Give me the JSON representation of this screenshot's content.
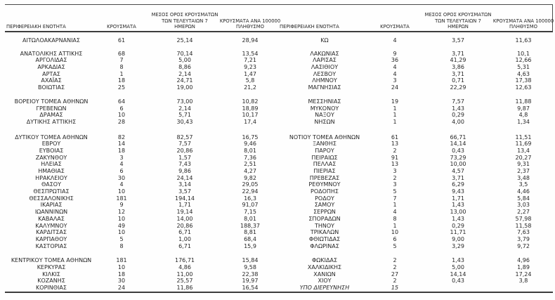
{
  "header": {
    "col_region": "ΠΕΡΙΦΕΡΕΙΑΚΗ ΕΝΟΤΗΤΑ",
    "col_cases": "ΚΡΟΥΣΜΑΤΑ",
    "col_avg7_line1": "ΜΕΣΟΣ ΟΡΟΣ ΚΡΟΥΣΜΑΤΩΝ",
    "col_avg7_line2": "ΤΩΝ ΤΕΛΕΥΤΑΙΩΝ 7",
    "col_avg7_line3": "ΗΜΕΡΩΝ",
    "col_per100k_line1": "ΚΡΟΥΣΜΑΤΑ ΑΝΑ 100000",
    "col_per100k_line2": "ΠΛΗΘΥΣΜΟ"
  },
  "tables": [
    {
      "side": "left",
      "rows": [
        {
          "region": "ΑΙΤΩΛΟΑΚΑΡΝΑΝΙΑΣ",
          "cases": "61",
          "avg7": "25,14",
          "per100k": "28,94"
        },
        {
          "spacer": true
        },
        {
          "region": "ΑΝΑΤΟΛΙΚΗΣ ΑΤΤΙΚΗΣ",
          "cases": "68",
          "avg7": "70,14",
          "per100k": "13,54"
        },
        {
          "region": "ΑΡΓΟΛΙΔΑΣ",
          "cases": "7",
          "avg7": "5,00",
          "per100k": "7,21"
        },
        {
          "region": "ΑΡΚΑΔΙΑΣ",
          "cases": "8",
          "avg7": "8,86",
          "per100k": "9,23"
        },
        {
          "region": "ΑΡΤΑΣ",
          "cases": "1",
          "avg7": "2,14",
          "per100k": "1,47"
        },
        {
          "region": "ΑΧΑΪΑΣ",
          "cases": "18",
          "avg7": "24,71",
          "per100k": "5,8"
        },
        {
          "region": "ΒΟΙΩΤΙΑΣ",
          "cases": "25",
          "avg7": "19,00",
          "per100k": "21,2"
        },
        {
          "spacer": true
        },
        {
          "region": "ΒΟΡΕΙΟΥ ΤΟΜΕΑ ΑΘΗΝΩΝ",
          "cases": "64",
          "avg7": "73,00",
          "per100k": "10,82"
        },
        {
          "region": "ΓΡΕΒΕΝΩΝ",
          "cases": "6",
          "avg7": "2,14",
          "per100k": "18,89"
        },
        {
          "region": "ΔΡΑΜΑΣ",
          "cases": "10",
          "avg7": "5,71",
          "per100k": "10,17"
        },
        {
          "region": "ΔΥΤΙΚΗΣ ΑΤΤΙΚΗΣ",
          "cases": "28",
          "avg7": "30,43",
          "per100k": "17,4"
        },
        {
          "spacer": true
        },
        {
          "region": "ΔΥΤΙΚΟΥ ΤΟΜΕΑ ΑΘΗΝΩΝ",
          "cases": "82",
          "avg7": "82,57",
          "per100k": "16,75"
        },
        {
          "region": "ΕΒΡΟΥ",
          "cases": "14",
          "avg7": "7,57",
          "per100k": "9,46"
        },
        {
          "region": "ΕΥΒΟΙΑΣ",
          "cases": "18",
          "avg7": "20,86",
          "per100k": "8,01"
        },
        {
          "region": "ΖΑΚΥΝΘΟΥ",
          "cases": "3",
          "avg7": "1,57",
          "per100k": "7,36"
        },
        {
          "region": "ΗΛΕΙΑΣ",
          "cases": "4",
          "avg7": "7,43",
          "per100k": "2,51"
        },
        {
          "region": "ΗΜΑΘΙΑΣ",
          "cases": "6",
          "avg7": "9,86",
          "per100k": "4,27"
        },
        {
          "region": "ΗΡΑΚΛΕΙΟΥ",
          "cases": "30",
          "avg7": "24,14",
          "per100k": "9,82"
        },
        {
          "region": "ΘΑΣΟΥ",
          "cases": "4",
          "avg7": "3,14",
          "per100k": "29,05"
        },
        {
          "region": "ΘΕΣΠΡΩΤΙΑΣ",
          "cases": "10",
          "avg7": "3,57",
          "per100k": "22,94"
        },
        {
          "region": "ΘΕΣΣΑΛΟΝΙΚΗΣ",
          "cases": "181",
          "avg7": "194,14",
          "per100k": "16,3"
        },
        {
          "region": "ΙΚΑΡΙΑΣ",
          "cases": "9",
          "avg7": "1,71",
          "per100k": "91,07"
        },
        {
          "region": "ΙΩΑΝΝΙΝΩΝ",
          "cases": "12",
          "avg7": "19,14",
          "per100k": "7,15"
        },
        {
          "region": "ΚΑΒΑΛΑΣ",
          "cases": "10",
          "avg7": "14,00",
          "per100k": "8,01"
        },
        {
          "region": "ΚΑΛΥΜΝΟΥ",
          "cases": "49",
          "avg7": "20,86",
          "per100k": "188,37"
        },
        {
          "region": "ΚΑΡΔΙΤΣΑΣ",
          "cases": "10",
          "avg7": "6,71",
          "per100k": "8,81"
        },
        {
          "region": "ΚΑΡΠΑΘΟΥ",
          "cases": "5",
          "avg7": "1,00",
          "per100k": "68,4"
        },
        {
          "region": "ΚΑΣΤΟΡΙΑΣ",
          "cases": "8",
          "avg7": "6,71",
          "per100k": "15,9"
        },
        {
          "spacer": true
        },
        {
          "region": "ΚΕΝΤΡΙΚΟΥ ΤΟΜΕΑ ΑΘΗΝΩΝ",
          "cases": "181",
          "avg7": "176,71",
          "per100k": "15,84"
        },
        {
          "region": "ΚΕΡΚΥΡΑΣ",
          "cases": "10",
          "avg7": "4,86",
          "per100k": "9,58"
        },
        {
          "region": "ΚΙΛΚΙΣ",
          "cases": "18",
          "avg7": "11,00",
          "per100k": "22,38"
        },
        {
          "region": "ΚΟΖΑΝΗΣ",
          "cases": "30",
          "avg7": "25,57",
          "per100k": "19,97"
        },
        {
          "region": "ΚΟΡΙΝΘΙΑΣ",
          "cases": "24",
          "avg7": "11,86",
          "per100k": "16,54"
        }
      ]
    },
    {
      "side": "right",
      "rows": [
        {
          "region": "ΚΩ",
          "cases": "4",
          "avg7": "3,57",
          "per100k": "11,63"
        },
        {
          "spacer": true
        },
        {
          "region": "ΛΑΚΩΝΙΑΣ",
          "cases": "9",
          "avg7": "3,71",
          "per100k": "10,1"
        },
        {
          "region": "ΛΑΡΙΣΑΣ",
          "cases": "36",
          "avg7": "41,29",
          "per100k": "12,66"
        },
        {
          "region": "ΛΑΣΙΘΙΟΥ",
          "cases": "4",
          "avg7": "3,86",
          "per100k": "5,31"
        },
        {
          "region": "ΛΕΣΒΟΥ",
          "cases": "4",
          "avg7": "3,71",
          "per100k": "4,63"
        },
        {
          "region": "ΛΗΜΝΟΥ",
          "cases": "3",
          "avg7": "0,71",
          "per100k": "17,38"
        },
        {
          "region": "ΜΑΓΝΗΣΙΑΣ",
          "cases": "24",
          "avg7": "22,29",
          "per100k": "12,63"
        },
        {
          "spacer": true
        },
        {
          "region": "ΜΕΣΣΗΝΙΑΣ",
          "cases": "19",
          "avg7": "7,57",
          "per100k": "11,88"
        },
        {
          "region": "ΜΥΚΟΝΟΥ",
          "cases": "1",
          "avg7": "1,43",
          "per100k": "9,87"
        },
        {
          "region": "ΝΑΞΟΥ",
          "cases": "1",
          "avg7": "0,29",
          "per100k": "4,8"
        },
        {
          "region": "ΝΗΣΩΝ",
          "cases": "1",
          "avg7": "4,00",
          "per100k": "1,34"
        },
        {
          "spacer": true
        },
        {
          "region": "ΝΟΤΙΟΥ ΤΟΜΕΑ ΑΘΗΝΩΝ",
          "cases": "61",
          "avg7": "66,71",
          "per100k": "11,51"
        },
        {
          "region": "ΞΑΝΘΗΣ",
          "cases": "13",
          "avg7": "14,14",
          "per100k": "11,69"
        },
        {
          "region": "ΠΑΡΟΥ",
          "cases": "2",
          "avg7": "0,43",
          "per100k": "13,4"
        },
        {
          "region": "ΠΕΙΡΑΙΩΣ",
          "cases": "91",
          "avg7": "73,29",
          "per100k": "20,27"
        },
        {
          "region": "ΠΕΛΛΑΣ",
          "cases": "13",
          "avg7": "10,00",
          "per100k": "9,31"
        },
        {
          "region": "ΠΙΕΡΙΑΣ",
          "cases": "3",
          "avg7": "4,57",
          "per100k": "2,37"
        },
        {
          "region": "ΠΡΕΒΕΖΑΣ",
          "cases": "2",
          "avg7": "3,71",
          "per100k": "3,48"
        },
        {
          "region": "ΡΕΘΥΜΝΟΥ",
          "cases": "3",
          "avg7": "6,29",
          "per100k": "3,5"
        },
        {
          "region": "ΡΟΔΟΠΗΣ",
          "cases": "5",
          "avg7": "9,43",
          "per100k": "4,46"
        },
        {
          "region": "ΡΟΔΟΥ",
          "cases": "7",
          "avg7": "1,71",
          "per100k": "5,84"
        },
        {
          "region": "ΣΑΜΟΥ",
          "cases": "1",
          "avg7": "1,43",
          "per100k": "3,03"
        },
        {
          "region": "ΣΕΡΡΩΝ",
          "cases": "4",
          "avg7": "13,00",
          "per100k": "2,27"
        },
        {
          "region": "ΣΠΟΡΑΔΩΝ",
          "cases": "8",
          "avg7": "1,43",
          "per100k": "57,98"
        },
        {
          "region": "ΤΗΝΟΥ",
          "cases": "1",
          "avg7": "0,29",
          "per100k": "11,58"
        },
        {
          "region": "ΤΡΙΚΑΛΩΝ",
          "cases": "10",
          "avg7": "11,71",
          "per100k": "7,63"
        },
        {
          "region": "ΦΘΙΩΤΙΔΑΣ",
          "cases": "6",
          "avg7": "9,00",
          "per100k": "3,79"
        },
        {
          "region": "ΦΛΩΡΙΝΑΣ",
          "cases": "5",
          "avg7": "3,29",
          "per100k": "9,72"
        },
        {
          "spacer": true
        },
        {
          "region": "ΦΩΚΙΔΑΣ",
          "cases": "2",
          "avg7": "1,43",
          "per100k": "4,96"
        },
        {
          "region": "ΧΑΛΚΙΔΙΚΗΣ",
          "cases": "2",
          "avg7": "5,00",
          "per100k": "1,89"
        },
        {
          "region": "ΧΑΝΙΩΝ",
          "cases": "27",
          "avg7": "14,14",
          "per100k": "17,24"
        },
        {
          "region": "ΧΙΟΥ",
          "cases": "2",
          "avg7": "0,43",
          "per100k": "3,8"
        },
        {
          "region": "ΥΠΟ ΔΙΕΡΕΥΝΗΣΗ",
          "cases": "15",
          "avg7": "",
          "per100k": "",
          "italic": true
        }
      ]
    }
  ]
}
